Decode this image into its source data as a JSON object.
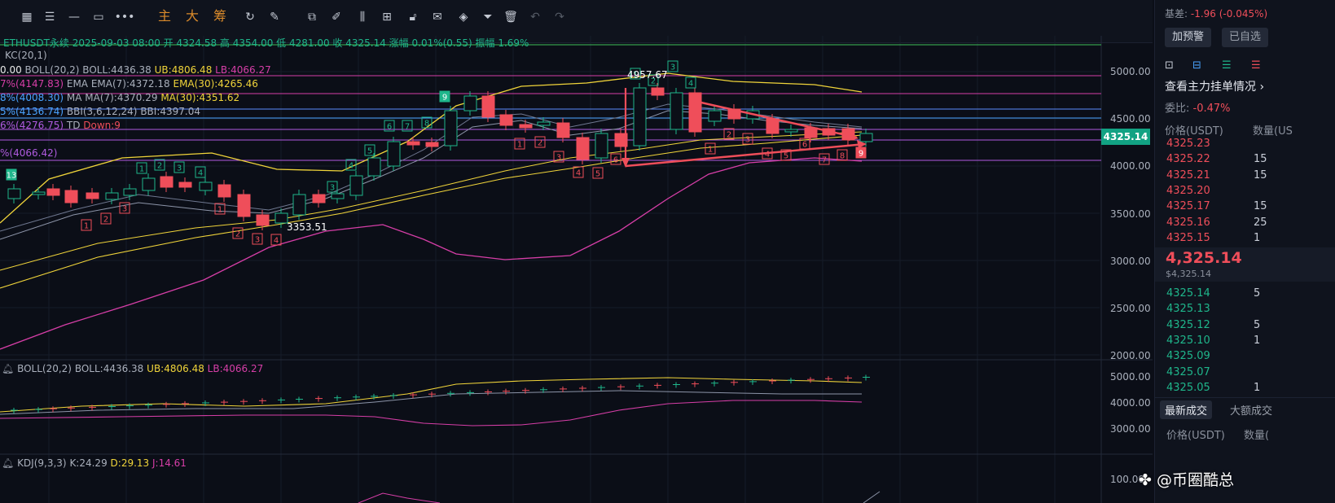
{
  "toolbar": {
    "buttons": [
      "主",
      "大",
      "筹"
    ],
    "icons": [
      "grid-icon",
      "lines-icon",
      "minus-icon",
      "rect-icon",
      "more-icon",
      "copy-icon",
      "pen-icon",
      "candles-icon",
      "lock-icon",
      "note-icon",
      "shapes-icon",
      "filter-icon",
      "trash-icon",
      "undo-icon",
      "redo-icon"
    ]
  },
  "main_chart": {
    "ohlc_line": "ETHUSDT永续 2025-09-03 08:00 开 4324.58 高 4354.00 低 4281.00 收 4325.14 涨幅 0.01%(0.55) 振幅 1.69%",
    "kc": "KC(20,1)",
    "boll_label": "BOLL(20,2)",
    "boll_mid": "BOLL:4436.38",
    "boll_ub": "UB:4806.48",
    "boll_lb": "LB:4066.27",
    "ema_label": "EMA",
    "ema7": "EMA(7):4372.18",
    "ema30": "EMA(30):4265.46",
    "ma_label": "MA",
    "ma7": "MA(7):4370.29",
    "ma30": "MA(30):4351.62",
    "bbi": "BBI(3,6,12,24)",
    "bbi_val": "BBI:4397.04",
    "td": "TD",
    "td_down": "Down:9",
    "left_cut": [
      "0.00",
      "7%(4147.83)",
      "8%(4008.30)",
      "5%(4136.74)",
      "6%(4276.75)",
      "%(4066.42)"
    ],
    "annotations": {
      "high": "4957.67",
      "low": "3353.51"
    },
    "y_axis": [
      "5000.00",
      "4500.00",
      "4000.00",
      "3500.00",
      "3000.00",
      "2500.00",
      "2000.00"
    ],
    "current_price": "4325.14"
  },
  "boll_pane": {
    "label": "BOLL(20,2)",
    "mid": "BOLL:4436.38",
    "ub": "UB:4806.48",
    "lb": "LB:4066.27",
    "y_axis": [
      "5000.00",
      "4000.00",
      "3000.00"
    ]
  },
  "kdj_pane": {
    "label": "KDJ(9,3,3)",
    "k": "K:24.29",
    "d": "D:29.13",
    "j": "J:14.61",
    "y_axis": [
      "100.00"
    ]
  },
  "side_panel": {
    "basis_label": "基差:",
    "basis_value": "-1.96 (-0.045%)",
    "alert_button": "加预警",
    "watchlist_button": "已自选",
    "orderbook_link": "查看主力挂单情况",
    "ratio_label": "委比:",
    "ratio_value": "-0.47%",
    "col_price": "价格(USDT)",
    "col_qty": "数量(US",
    "asks": [
      {
        "price": "4325.23",
        "qty": ""
      },
      {
        "price": "4325.22",
        "qty": "15"
      },
      {
        "price": "4325.21",
        "qty": "15"
      },
      {
        "price": "4325.20",
        "qty": ""
      },
      {
        "price": "4325.17",
        "qty": "15"
      },
      {
        "price": "4325.16",
        "qty": "25"
      },
      {
        "price": "4325.15",
        "qty": "1"
      }
    ],
    "last_price": "4,325.14",
    "last_price_usd": "$4,325.14",
    "bids": [
      {
        "price": "4325.14",
        "qty": "5"
      },
      {
        "price": "4325.13",
        "qty": ""
      },
      {
        "price": "4325.12",
        "qty": "5"
      },
      {
        "price": "4325.10",
        "qty": "1"
      },
      {
        "price": "4325.09",
        "qty": ""
      },
      {
        "price": "4325.07",
        "qty": ""
      },
      {
        "price": "4325.05",
        "qty": "1"
      }
    ],
    "tab_latest": "最新成交",
    "tab_large": "大额成交",
    "trades_col_price": "价格(USDT)",
    "trades_col_qty": "数量(",
    "watermark": "@币圈酷总"
  },
  "colors": {
    "up": "#1fb68b",
    "down": "#ef4e5a",
    "accent": "#f0d43a",
    "magenta": "#d63ea7"
  }
}
